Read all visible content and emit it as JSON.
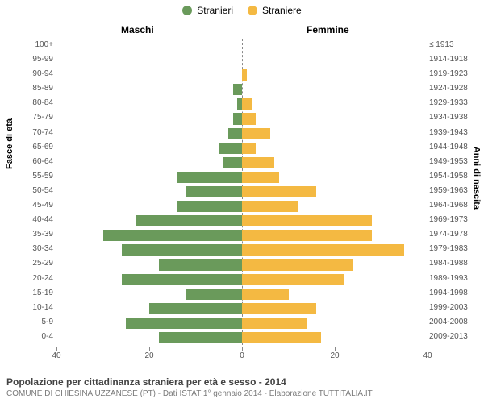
{
  "legend": {
    "male_label": "Stranieri",
    "female_label": "Straniere"
  },
  "headers": {
    "maschi": "Maschi",
    "femmine": "Femmine"
  },
  "axes": {
    "left_title": "Fasce di età",
    "right_title": "Anni di nascita",
    "x_max": 40,
    "x_ticks_left": [
      "40",
      "20",
      "0"
    ],
    "x_ticks_right": [
      "20",
      "40"
    ],
    "x_tick_positions": [
      -40,
      -20,
      0,
      20,
      40
    ]
  },
  "colors": {
    "male": "#6a9a5b",
    "female": "#f4b942",
    "axis": "#888888",
    "background": "#ffffff",
    "text": "#555555"
  },
  "rows": [
    {
      "age": "100+",
      "birth": "≤ 1913",
      "m": 0,
      "f": 0
    },
    {
      "age": "95-99",
      "birth": "1914-1918",
      "m": 0,
      "f": 0
    },
    {
      "age": "90-94",
      "birth": "1919-1923",
      "m": 0,
      "f": 1
    },
    {
      "age": "85-89",
      "birth": "1924-1928",
      "m": 2,
      "f": 0
    },
    {
      "age": "80-84",
      "birth": "1929-1933",
      "m": 1,
      "f": 2
    },
    {
      "age": "75-79",
      "birth": "1934-1938",
      "m": 2,
      "f": 3
    },
    {
      "age": "70-74",
      "birth": "1939-1943",
      "m": 3,
      "f": 6
    },
    {
      "age": "65-69",
      "birth": "1944-1948",
      "m": 5,
      "f": 3
    },
    {
      "age": "60-64",
      "birth": "1949-1953",
      "m": 4,
      "f": 7
    },
    {
      "age": "55-59",
      "birth": "1954-1958",
      "m": 14,
      "f": 8
    },
    {
      "age": "50-54",
      "birth": "1959-1963",
      "m": 12,
      "f": 16
    },
    {
      "age": "45-49",
      "birth": "1964-1968",
      "m": 14,
      "f": 12
    },
    {
      "age": "40-44",
      "birth": "1969-1973",
      "m": 23,
      "f": 28
    },
    {
      "age": "35-39",
      "birth": "1974-1978",
      "m": 30,
      "f": 28
    },
    {
      "age": "30-34",
      "birth": "1979-1983",
      "m": 26,
      "f": 35
    },
    {
      "age": "25-29",
      "birth": "1984-1988",
      "m": 18,
      "f": 24
    },
    {
      "age": "20-24",
      "birth": "1989-1993",
      "m": 26,
      "f": 22
    },
    {
      "age": "15-19",
      "birth": "1994-1998",
      "m": 12,
      "f": 10
    },
    {
      "age": "10-14",
      "birth": "1999-2003",
      "m": 20,
      "f": 16
    },
    {
      "age": "5-9",
      "birth": "2004-2008",
      "m": 25,
      "f": 14
    },
    {
      "age": "0-4",
      "birth": "2009-2013",
      "m": 18,
      "f": 17
    }
  ],
  "footer": {
    "title": "Popolazione per cittadinanza straniera per età e sesso - 2014",
    "source": "COMUNE DI CHIESINA UZZANESE (PT) - Dati ISTAT 1° gennaio 2014 - Elaborazione TUTTITALIA.IT"
  }
}
